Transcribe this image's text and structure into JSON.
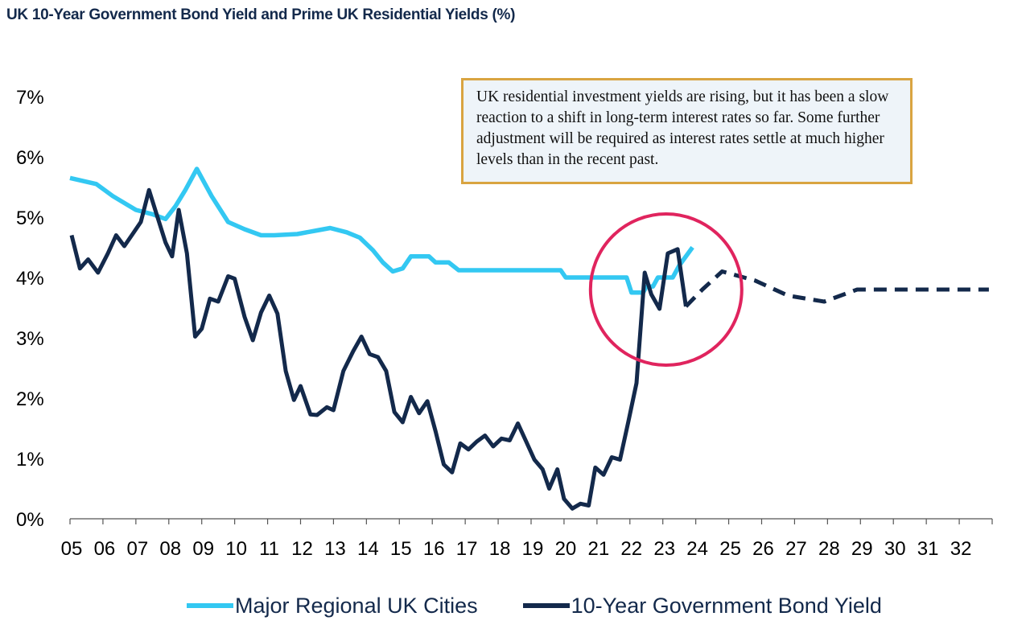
{
  "title": "UK 10-Year Government Bond Yield and Prime UK Residential Yields (%)",
  "annotation": "UK residential investment yields are rising, but it has been a slow reaction to a shift in long-term interest rates so far. Some further adjustment will be required as interest rates settle at much higher levels than in the recent past.",
  "legend": {
    "regional": "Major Regional UK Cities",
    "bond": "10-Year Government Bond Yield"
  },
  "colors": {
    "regional": "#33c8f2",
    "bond": "#13294b",
    "highlight_circle": "#e0245e",
    "annotation_border": "#d9a441",
    "annotation_fill": "#eef4f9"
  },
  "chart_data": {
    "type": "line",
    "title": "UK 10-Year Government Bond Yield and Prime UK Residential Yields (%)",
    "x_ticks": [
      "05",
      "06",
      "07",
      "08",
      "09",
      "10",
      "11",
      "12",
      "13",
      "14",
      "15",
      "16",
      "17",
      "18",
      "19",
      "20",
      "21",
      "22",
      "23",
      "24",
      "25",
      "26",
      "27",
      "28",
      "29",
      "30",
      "31",
      "32"
    ],
    "y_ticks": [
      "0%",
      "1%",
      "2%",
      "3%",
      "4%",
      "5%",
      "6%",
      "7%"
    ],
    "xlim": [
      2005,
      2033
    ],
    "ylim": [
      0,
      7
    ],
    "grid": false,
    "legend_position": "bottom",
    "highlight": {
      "shape": "circle",
      "center": [
        2023.1,
        3.8
      ],
      "note": "highlighted recent period"
    },
    "series": [
      {
        "name": "Major Regional UK Cities",
        "key": "regional",
        "style": "solid",
        "points": [
          [
            2005.0,
            5.65
          ],
          [
            2005.8,
            5.55
          ],
          [
            2006.3,
            5.35
          ],
          [
            2007.0,
            5.12
          ],
          [
            2007.5,
            5.05
          ],
          [
            2007.9,
            4.97
          ],
          [
            2008.2,
            5.18
          ],
          [
            2008.5,
            5.45
          ],
          [
            2008.85,
            5.8
          ],
          [
            2009.3,
            5.35
          ],
          [
            2009.8,
            4.92
          ],
          [
            2010.3,
            4.8
          ],
          [
            2010.8,
            4.7
          ],
          [
            2011.2,
            4.7
          ],
          [
            2011.9,
            4.72
          ],
          [
            2012.5,
            4.78
          ],
          [
            2012.9,
            4.82
          ],
          [
            2013.4,
            4.75
          ],
          [
            2013.8,
            4.66
          ],
          [
            2014.2,
            4.45
          ],
          [
            2014.5,
            4.25
          ],
          [
            2014.8,
            4.1
          ],
          [
            2015.1,
            4.15
          ],
          [
            2015.35,
            4.35
          ],
          [
            2015.9,
            4.35
          ],
          [
            2016.1,
            4.25
          ],
          [
            2016.5,
            4.25
          ],
          [
            2016.8,
            4.12
          ],
          [
            2017.5,
            4.12
          ],
          [
            2018.5,
            4.12
          ],
          [
            2019.5,
            4.12
          ],
          [
            2019.9,
            4.12
          ],
          [
            2020.05,
            4.0
          ],
          [
            2021.0,
            4.0
          ],
          [
            2021.9,
            4.0
          ],
          [
            2022.05,
            3.75
          ],
          [
            2022.4,
            3.75
          ],
          [
            2022.5,
            3.85
          ],
          [
            2022.7,
            3.85
          ],
          [
            2022.85,
            4.0
          ],
          [
            2023.3,
            4.0
          ],
          [
            2023.5,
            4.2
          ],
          [
            2023.9,
            4.5
          ]
        ]
      },
      {
        "name": "10-Year Government Bond Yield",
        "key": "bond",
        "style": "solid",
        "points": [
          [
            2005.05,
            4.7
          ],
          [
            2005.3,
            4.15
          ],
          [
            2005.55,
            4.3
          ],
          [
            2005.85,
            4.08
          ],
          [
            2006.15,
            4.4
          ],
          [
            2006.4,
            4.7
          ],
          [
            2006.65,
            4.52
          ],
          [
            2006.9,
            4.72
          ],
          [
            2007.15,
            4.92
          ],
          [
            2007.4,
            5.45
          ],
          [
            2007.6,
            5.1
          ],
          [
            2007.9,
            4.58
          ],
          [
            2008.1,
            4.35
          ],
          [
            2008.3,
            5.12
          ],
          [
            2008.55,
            4.4
          ],
          [
            2008.8,
            3.02
          ],
          [
            2009.0,
            3.15
          ],
          [
            2009.25,
            3.65
          ],
          [
            2009.5,
            3.6
          ],
          [
            2009.8,
            4.02
          ],
          [
            2010.0,
            3.98
          ],
          [
            2010.3,
            3.35
          ],
          [
            2010.55,
            2.96
          ],
          [
            2010.8,
            3.42
          ],
          [
            2011.05,
            3.7
          ],
          [
            2011.3,
            3.4
          ],
          [
            2011.55,
            2.45
          ],
          [
            2011.8,
            1.97
          ],
          [
            2012.0,
            2.2
          ],
          [
            2012.3,
            1.73
          ],
          [
            2012.5,
            1.72
          ],
          [
            2012.8,
            1.85
          ],
          [
            2013.0,
            1.8
          ],
          [
            2013.3,
            2.45
          ],
          [
            2013.6,
            2.78
          ],
          [
            2013.85,
            3.02
          ],
          [
            2014.1,
            2.73
          ],
          [
            2014.35,
            2.68
          ],
          [
            2014.6,
            2.45
          ],
          [
            2014.85,
            1.77
          ],
          [
            2015.1,
            1.6
          ],
          [
            2015.35,
            2.02
          ],
          [
            2015.6,
            1.75
          ],
          [
            2015.85,
            1.95
          ],
          [
            2016.1,
            1.45
          ],
          [
            2016.35,
            0.9
          ],
          [
            2016.6,
            0.77
          ],
          [
            2016.85,
            1.25
          ],
          [
            2017.1,
            1.15
          ],
          [
            2017.35,
            1.28
          ],
          [
            2017.6,
            1.38
          ],
          [
            2017.85,
            1.2
          ],
          [
            2018.1,
            1.33
          ],
          [
            2018.35,
            1.3
          ],
          [
            2018.6,
            1.58
          ],
          [
            2018.85,
            1.28
          ],
          [
            2019.1,
            0.98
          ],
          [
            2019.35,
            0.82
          ],
          [
            2019.55,
            0.5
          ],
          [
            2019.8,
            0.82
          ],
          [
            2020.0,
            0.33
          ],
          [
            2020.25,
            0.17
          ],
          [
            2020.5,
            0.25
          ],
          [
            2020.75,
            0.22
          ],
          [
            2020.95,
            0.85
          ],
          [
            2021.2,
            0.73
          ],
          [
            2021.45,
            1.02
          ],
          [
            2021.7,
            0.98
          ],
          [
            2021.95,
            1.6
          ],
          [
            2022.2,
            2.25
          ],
          [
            2022.45,
            4.08
          ],
          [
            2022.65,
            3.72
          ],
          [
            2022.9,
            3.48
          ],
          [
            2023.15,
            4.4
          ],
          [
            2023.45,
            4.47
          ],
          [
            2023.7,
            3.52
          ]
        ]
      },
      {
        "name": "",
        "key": "bond",
        "style": "dashed",
        "points": [
          [
            2023.7,
            3.52
          ],
          [
            2024.2,
            3.8
          ],
          [
            2024.8,
            4.1
          ],
          [
            2025.8,
            3.95
          ],
          [
            2026.8,
            3.7
          ],
          [
            2027.9,
            3.6
          ],
          [
            2028.9,
            3.8
          ],
          [
            2029.9,
            3.8
          ],
          [
            2030.9,
            3.8
          ],
          [
            2031.9,
            3.8
          ],
          [
            2032.9,
            3.8
          ]
        ]
      }
    ]
  }
}
